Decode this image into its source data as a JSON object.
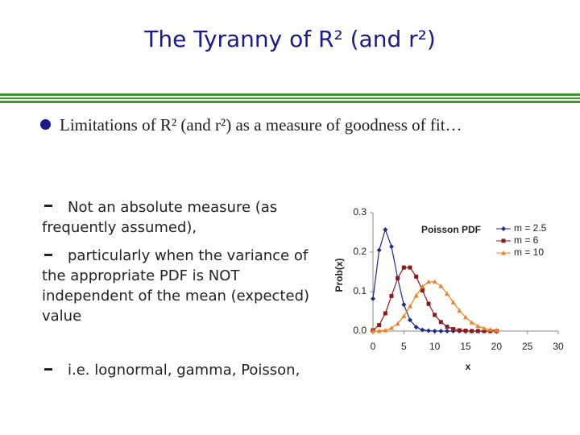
{
  "slide": {
    "title": "The Tyranny of R² (and r²)",
    "bullet": "Limitations of R² (and r²) as a measure of goodness of fit…",
    "subitems": [
      "Not an absolute measure (as frequently assumed),",
      "particularly when the variance of the appropriate PDF is NOT independent of the mean (expected) value",
      "i.e. lognormal, gamma, Poisson,"
    ]
  },
  "chart_data": {
    "type": "line",
    "title": "Poisson PDF",
    "x_label": "x",
    "y_label": "Prob(x)",
    "x": [
      0,
      1,
      2,
      3,
      4,
      5,
      6,
      7,
      8,
      9,
      10,
      11,
      12,
      13,
      14,
      15,
      16,
      17,
      18,
      19,
      20
    ],
    "series": [
      {
        "name": "m = 2.5",
        "color": "#1f2a8a",
        "marker": "diamond",
        "values": [
          0.082,
          0.205,
          0.257,
          0.214,
          0.134,
          0.067,
          0.028,
          0.01,
          0.003,
          0.001,
          0,
          0,
          0,
          0,
          0,
          0,
          0,
          0,
          0,
          0,
          0
        ]
      },
      {
        "name": "m = 6",
        "color": "#8b1a1a",
        "marker": "square",
        "values": [
          0.002,
          0.015,
          0.045,
          0.089,
          0.134,
          0.161,
          0.161,
          0.138,
          0.103,
          0.069,
          0.041,
          0.023,
          0.011,
          0.005,
          0.002,
          0.001,
          0,
          0,
          0,
          0,
          0
        ]
      },
      {
        "name": "m = 10",
        "color": "#f08020",
        "marker": "triangle",
        "values": [
          0,
          0.0005,
          0.002,
          0.008,
          0.019,
          0.038,
          0.063,
          0.09,
          0.113,
          0.125,
          0.125,
          0.114,
          0.095,
          0.073,
          0.052,
          0.035,
          0.022,
          0.013,
          0.007,
          0.004,
          0.002
        ]
      }
    ],
    "xlim": [
      0,
      30
    ],
    "xticks": [
      0,
      5,
      10,
      15,
      20,
      25,
      30
    ],
    "ylim": [
      0,
      0.3
    ],
    "yticks": [
      {
        "value": 0,
        "label": "0.0"
      },
      0.1,
      0.2,
      0.3
    ],
    "legend": "upper right",
    "grid": false
  }
}
